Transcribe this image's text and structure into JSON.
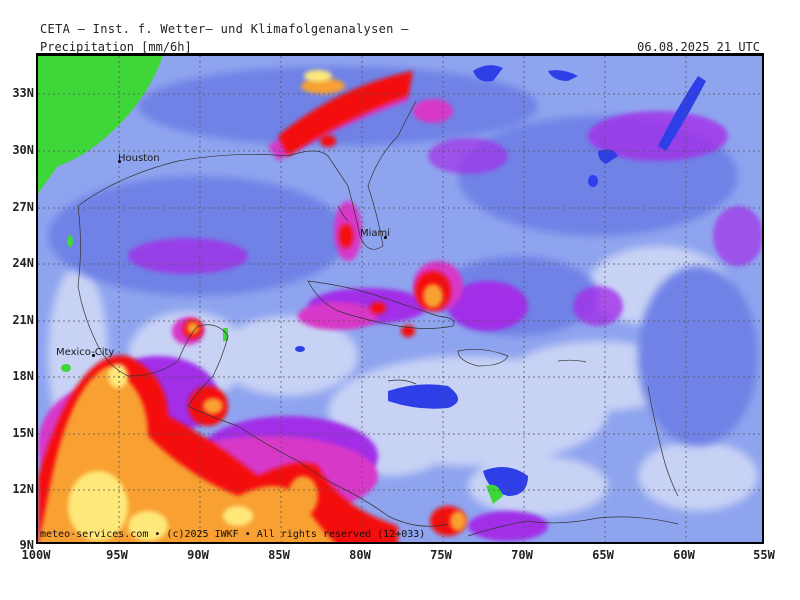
{
  "header": {
    "title": "CETA — Inst. f. Wetter— und Klimafolgenanalysen —",
    "parameter": "Precipitation [mm/6h]",
    "valid_time": "06.08.2025 21 UTC"
  },
  "map": {
    "lat_labels": [
      "33N",
      "30N",
      "27N",
      "24N",
      "21N",
      "18N",
      "15N",
      "12N",
      "9N"
    ],
    "lon_labels": [
      "100W",
      "95W",
      "90W",
      "85W",
      "80W",
      "75W",
      "70W",
      "65W",
      "60W",
      "55W"
    ],
    "cities": [
      {
        "name": "Houston"
      },
      {
        "name": "Miami"
      },
      {
        "name": "Mexico-City"
      }
    ],
    "footer": "meteo-services.com • (c)2025 IWKF • All rights reserved (12+033)",
    "colors": {
      "background_rain": "#8fa4ef",
      "light_rain": "#c7d2f5",
      "moderate_rain": "#6f82e6",
      "heavy_blue": "#2e3fe8",
      "purple": "#a22fe8",
      "magenta": "#d838c8",
      "red": "#f41010",
      "orange": "#f8a030",
      "yellow": "#ffe87a",
      "green": "#3fd63a"
    }
  }
}
